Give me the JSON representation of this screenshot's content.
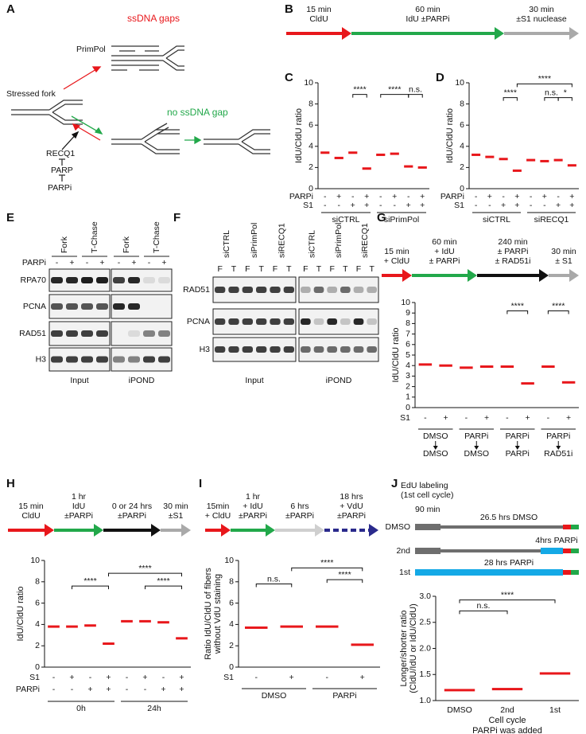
{
  "panel_labels": [
    "A",
    "B",
    "C",
    "D",
    "E",
    "F",
    "G",
    "H",
    "I",
    "J"
  ],
  "diagram_a": {
    "gap_label": "ssDNA gaps",
    "primpol": "PrimPol",
    "stressed": "Stressed fork",
    "no_gap": "no ssDNA gap",
    "recq1": "RECQ1",
    "parp": "PARP",
    "parpi": "PARPi"
  },
  "timelines": [
    {
      "steps": [
        {
          "lines": [
            "15 min",
            "CldU"
          ]
        },
        {
          "lines": [
            "60 min",
            "IdU ±PARPi"
          ]
        },
        {
          "lines": [
            "30 min",
            "±S1 nuclease"
          ]
        }
      ]
    },
    {
      "steps": [
        {
          "lines": [
            "15 min",
            "+ CldU"
          ]
        },
        {
          "lines": [
            "60 min",
            "+ IdU",
            "± PARPi"
          ]
        },
        {
          "lines": [
            "240 min",
            "± PARPi",
            "± RAD51i"
          ]
        },
        {
          "lines": [
            "30 min",
            "± S1"
          ]
        }
      ]
    },
    {
      "steps": [
        {
          "lines": [
            "15 min",
            "CldU"
          ]
        },
        {
          "lines": [
            "1 hr",
            "IdU",
            "±PARPi"
          ]
        },
        {
          "lines": [
            "0 or 24 hrs",
            "±PARPi"
          ]
        },
        {
          "lines": [
            "30 min",
            "±S1"
          ]
        }
      ]
    },
    {
      "steps": [
        {
          "lines": [
            "15min",
            "+ CldU"
          ]
        },
        {
          "lines": [
            "1 hr",
            "+ IdU",
            "±PARPi"
          ]
        },
        {
          "lines": [
            "6 hrs",
            "±PARPi"
          ]
        },
        {
          "lines": [
            "18 hrs",
            "+ VdU",
            "±PARPi"
          ]
        }
      ]
    }
  ],
  "blot_e": {
    "columns": [
      "Fork",
      "T-Chase",
      "Fork",
      "T-Chase"
    ],
    "treatment": {
      "name": "PARPi",
      "marks": [
        "-",
        "+",
        "-",
        "+",
        "-",
        "+",
        "-",
        "+"
      ]
    },
    "rows": [
      "RPA70",
      "PCNA",
      "RAD51",
      "H3"
    ],
    "blocks": [
      "Input",
      "iPOND"
    ]
  },
  "blot_f": {
    "columns": [
      "siCTRL",
      "siPrimPol",
      "siRECQ1",
      "siCTRL",
      "siPrimPol",
      "siRECQ1"
    ],
    "lanes": [
      "F",
      "T",
      "F",
      "T",
      "F",
      "T",
      "F",
      "T",
      "F",
      "T",
      "F",
      "T"
    ],
    "rows": [
      "RAD51",
      "PCNA",
      "H3"
    ],
    "blocks": [
      "Input",
      "iPOND"
    ]
  },
  "diagram_j": {
    "title": [
      "EdU labeling",
      "(1st cell cycle)"
    ],
    "first": "90 min",
    "rows": [
      {
        "name": "DMSO",
        "text": "26.5 hrs DMSO"
      },
      {
        "name": "2nd",
        "text": "4hrs PARPi"
      },
      {
        "name": "1st",
        "text": "28 hrs PARPi"
      }
    ]
  },
  "chart_data": [
    {
      "type": "dot",
      "y_label": [
        "IdU/CldU ratio"
      ],
      "values": [
        3.4,
        2.9,
        3.4,
        1.9,
        3.2,
        3.3,
        2.1,
        2.0
      ],
      "color": "#e8171b",
      "ylim": [
        0,
        10
      ],
      "yticks": [
        0,
        2,
        4,
        6,
        8,
        10
      ],
      "rows": [
        {
          "name": "PARPi",
          "marks": [
            "-",
            "+",
            "-",
            "+",
            "-",
            "+",
            "-",
            "+"
          ]
        },
        {
          "name": "S1",
          "marks": [
            "-",
            "-",
            "+",
            "+",
            "-",
            "-",
            "+",
            "+"
          ]
        }
      ],
      "groups": [
        {
          "lines": [
            "siCTRL"
          ]
        },
        {
          "lines": [
            "siPrimPol"
          ]
        }
      ],
      "annotations": [
        "****",
        "****",
        "n.s."
      ]
    },
    {
      "type": "dot",
      "y_label": [
        "IdU/CldU ratio"
      ],
      "values": [
        3.2,
        3.0,
        2.8,
        1.7,
        2.7,
        2.6,
        2.7,
        2.2
      ],
      "color": "#e8171b",
      "ylim": [
        0,
        10
      ],
      "yticks": [
        0,
        2,
        4,
        6,
        8,
        10
      ],
      "rows": [
        {
          "name": "PARPi",
          "marks": [
            "-",
            "+",
            "-",
            "+",
            "-",
            "+",
            "-",
            "+"
          ]
        },
        {
          "name": "S1",
          "marks": [
            "-",
            "-",
            "+",
            "+",
            "-",
            "-",
            "+",
            "+"
          ]
        }
      ],
      "groups": [
        {
          "lines": [
            "siCTRL"
          ]
        },
        {
          "lines": [
            "siRECQ1"
          ]
        }
      ],
      "annotations": [
        "****",
        "****",
        "n.s.",
        "*"
      ]
    },
    {
      "type": "dot",
      "y_label": [
        "IdU/CldU ratio"
      ],
      "values": [
        4.1,
        4.0,
        3.8,
        3.9,
        3.9,
        2.3,
        3.9,
        2.4
      ],
      "color": "#e8171b",
      "ylim": [
        0,
        10
      ],
      "yticks": [
        0,
        1,
        2,
        3,
        4,
        5,
        6,
        7,
        8,
        9,
        10
      ],
      "rows": [
        {
          "name": "S1",
          "marks": [
            "-",
            "+",
            "-",
            "+",
            "-",
            "+",
            "-",
            "+"
          ]
        }
      ],
      "groups": [
        {
          "lines": [
            "DMSO",
            "DMSO"
          ]
        },
        {
          "lines": [
            "PARPi",
            "DMSO"
          ]
        },
        {
          "lines": [
            "PARPi",
            "PARPi"
          ]
        },
        {
          "lines": [
            "PARPi",
            "RAD51i"
          ]
        }
      ],
      "annotations": [
        "****",
        "****"
      ]
    },
    {
      "type": "dot",
      "y_label": [
        "IdU/CldU ratio"
      ],
      "values": [
        3.8,
        3.8,
        3.9,
        2.2,
        4.3,
        4.3,
        4.2,
        2.7
      ],
      "color": "#e8171b",
      "ylim": [
        0,
        10
      ],
      "yticks": [
        0,
        2,
        4,
        6,
        8,
        10
      ],
      "rows": [
        {
          "name": "S1",
          "marks": [
            "-",
            "+",
            "-",
            "+",
            "-",
            "+",
            "-",
            "+"
          ]
        },
        {
          "name": "PARPi",
          "marks": [
            "-",
            "-",
            "+",
            "+",
            "-",
            "-",
            "+",
            "+"
          ]
        }
      ],
      "groups": [
        {
          "lines": [
            "0h"
          ]
        },
        {
          "lines": [
            "24h"
          ]
        }
      ],
      "annotations": [
        "****",
        "****",
        "****"
      ]
    },
    {
      "type": "dot",
      "y_label": [
        "Ratio IdU/CldU of fibers",
        "without VdU staining"
      ],
      "values": [
        3.7,
        3.8,
        3.8,
        2.1
      ],
      "color": "#e8171b",
      "ylim": [
        0,
        10
      ],
      "yticks": [
        0,
        2,
        4,
        6,
        8,
        10
      ],
      "rows": [
        {
          "name": "S1",
          "marks": [
            "-",
            "+",
            "-",
            "+"
          ]
        }
      ],
      "groups": [
        {
          "lines": [
            "DMSO"
          ]
        },
        {
          "lines": [
            "PARPi"
          ]
        }
      ],
      "annotations": [
        "n.s.",
        "****",
        "****"
      ]
    },
    {
      "type": "dot",
      "y_label": [
        "Longer/shorter ratio",
        "(CldU/IdU or IdU/CldU)"
      ],
      "values": [
        1.2,
        1.22,
        1.52
      ],
      "color": "#e8171b",
      "ylim": [
        1,
        3
      ],
      "yticks": [
        {
          "value": 1,
          "label": "1.0"
        },
        1.5,
        {
          "value": 2,
          "label": "2.0"
        },
        2.5,
        {
          "value": 3,
          "label": "3.0"
        }
      ],
      "categories": [
        "DMSO",
        "2nd",
        "1st"
      ],
      "x_label": [
        "Cell cycle",
        "PARPi was added"
      ],
      "annotations": [
        "n.s.",
        "****"
      ]
    }
  ]
}
